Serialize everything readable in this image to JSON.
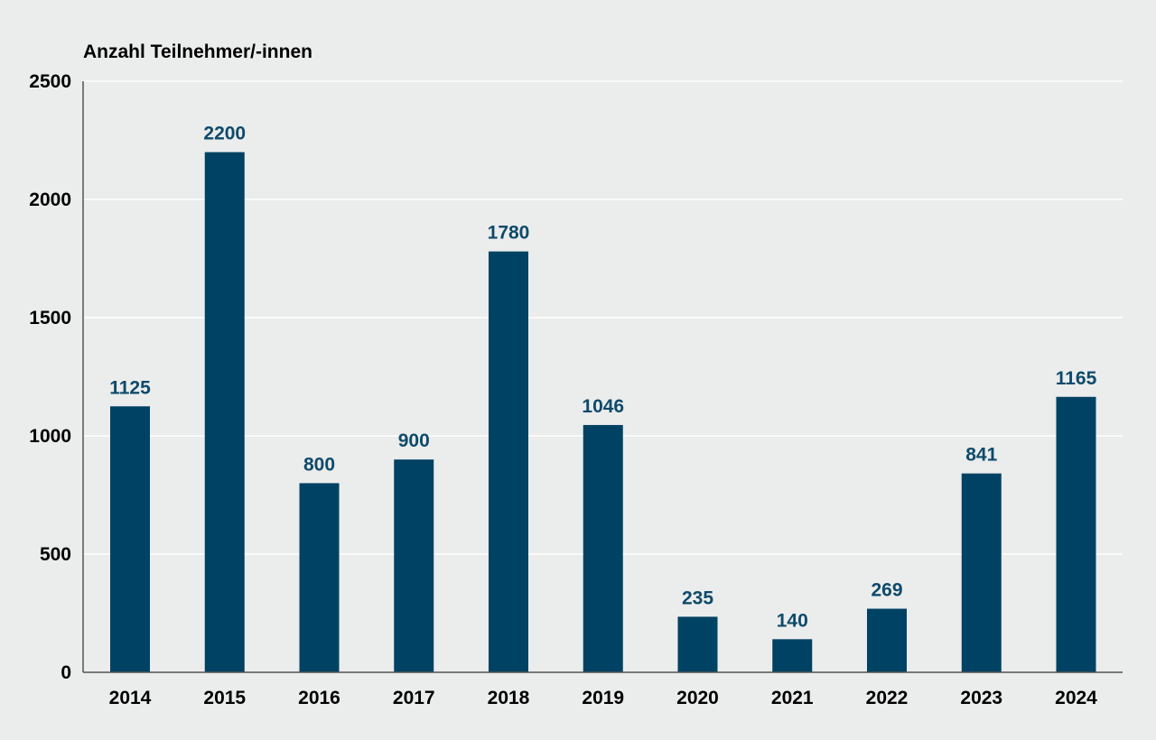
{
  "chart_data": {
    "type": "bar",
    "ylabel": "Anzahl Teilnehmer/-innen",
    "categories": [
      "2014",
      "2015",
      "2016",
      "2017",
      "2018",
      "2019",
      "2020",
      "2021",
      "2022",
      "2023",
      "2024"
    ],
    "values": [
      1125,
      2200,
      800,
      900,
      1780,
      1046,
      235,
      140,
      269,
      841,
      1165
    ],
    "value_labels": [
      "1125",
      "2200",
      "800",
      "900",
      "1780",
      "1046",
      "235",
      "140",
      "269",
      "841",
      "1165"
    ],
    "ylim": [
      0,
      2500
    ],
    "yticks": [
      "0",
      "500",
      "1000",
      "1500",
      "2000",
      "2500"
    ],
    "ytick_values": [
      0,
      500,
      1000,
      1500,
      2000,
      2500
    ],
    "grid": true,
    "colors": {
      "bar": "#004263",
      "label": "#0e4a6b",
      "grid": "#ffffff",
      "axis": "#555555",
      "background": "#ebecec"
    }
  }
}
